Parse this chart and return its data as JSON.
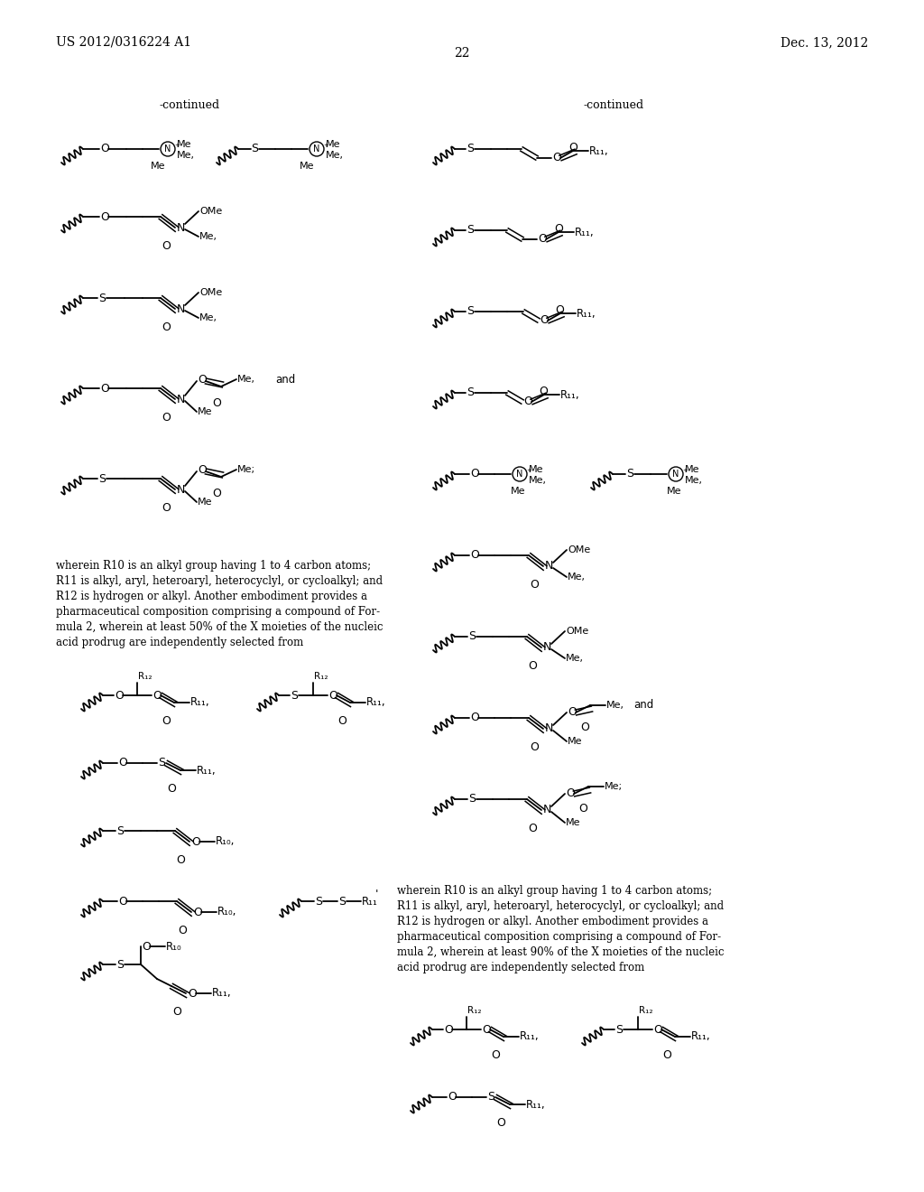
{
  "background_color": "#ffffff",
  "header_left": "US 2012/0316224 A1",
  "header_right": "Dec. 13, 2012",
  "page_number": "22"
}
